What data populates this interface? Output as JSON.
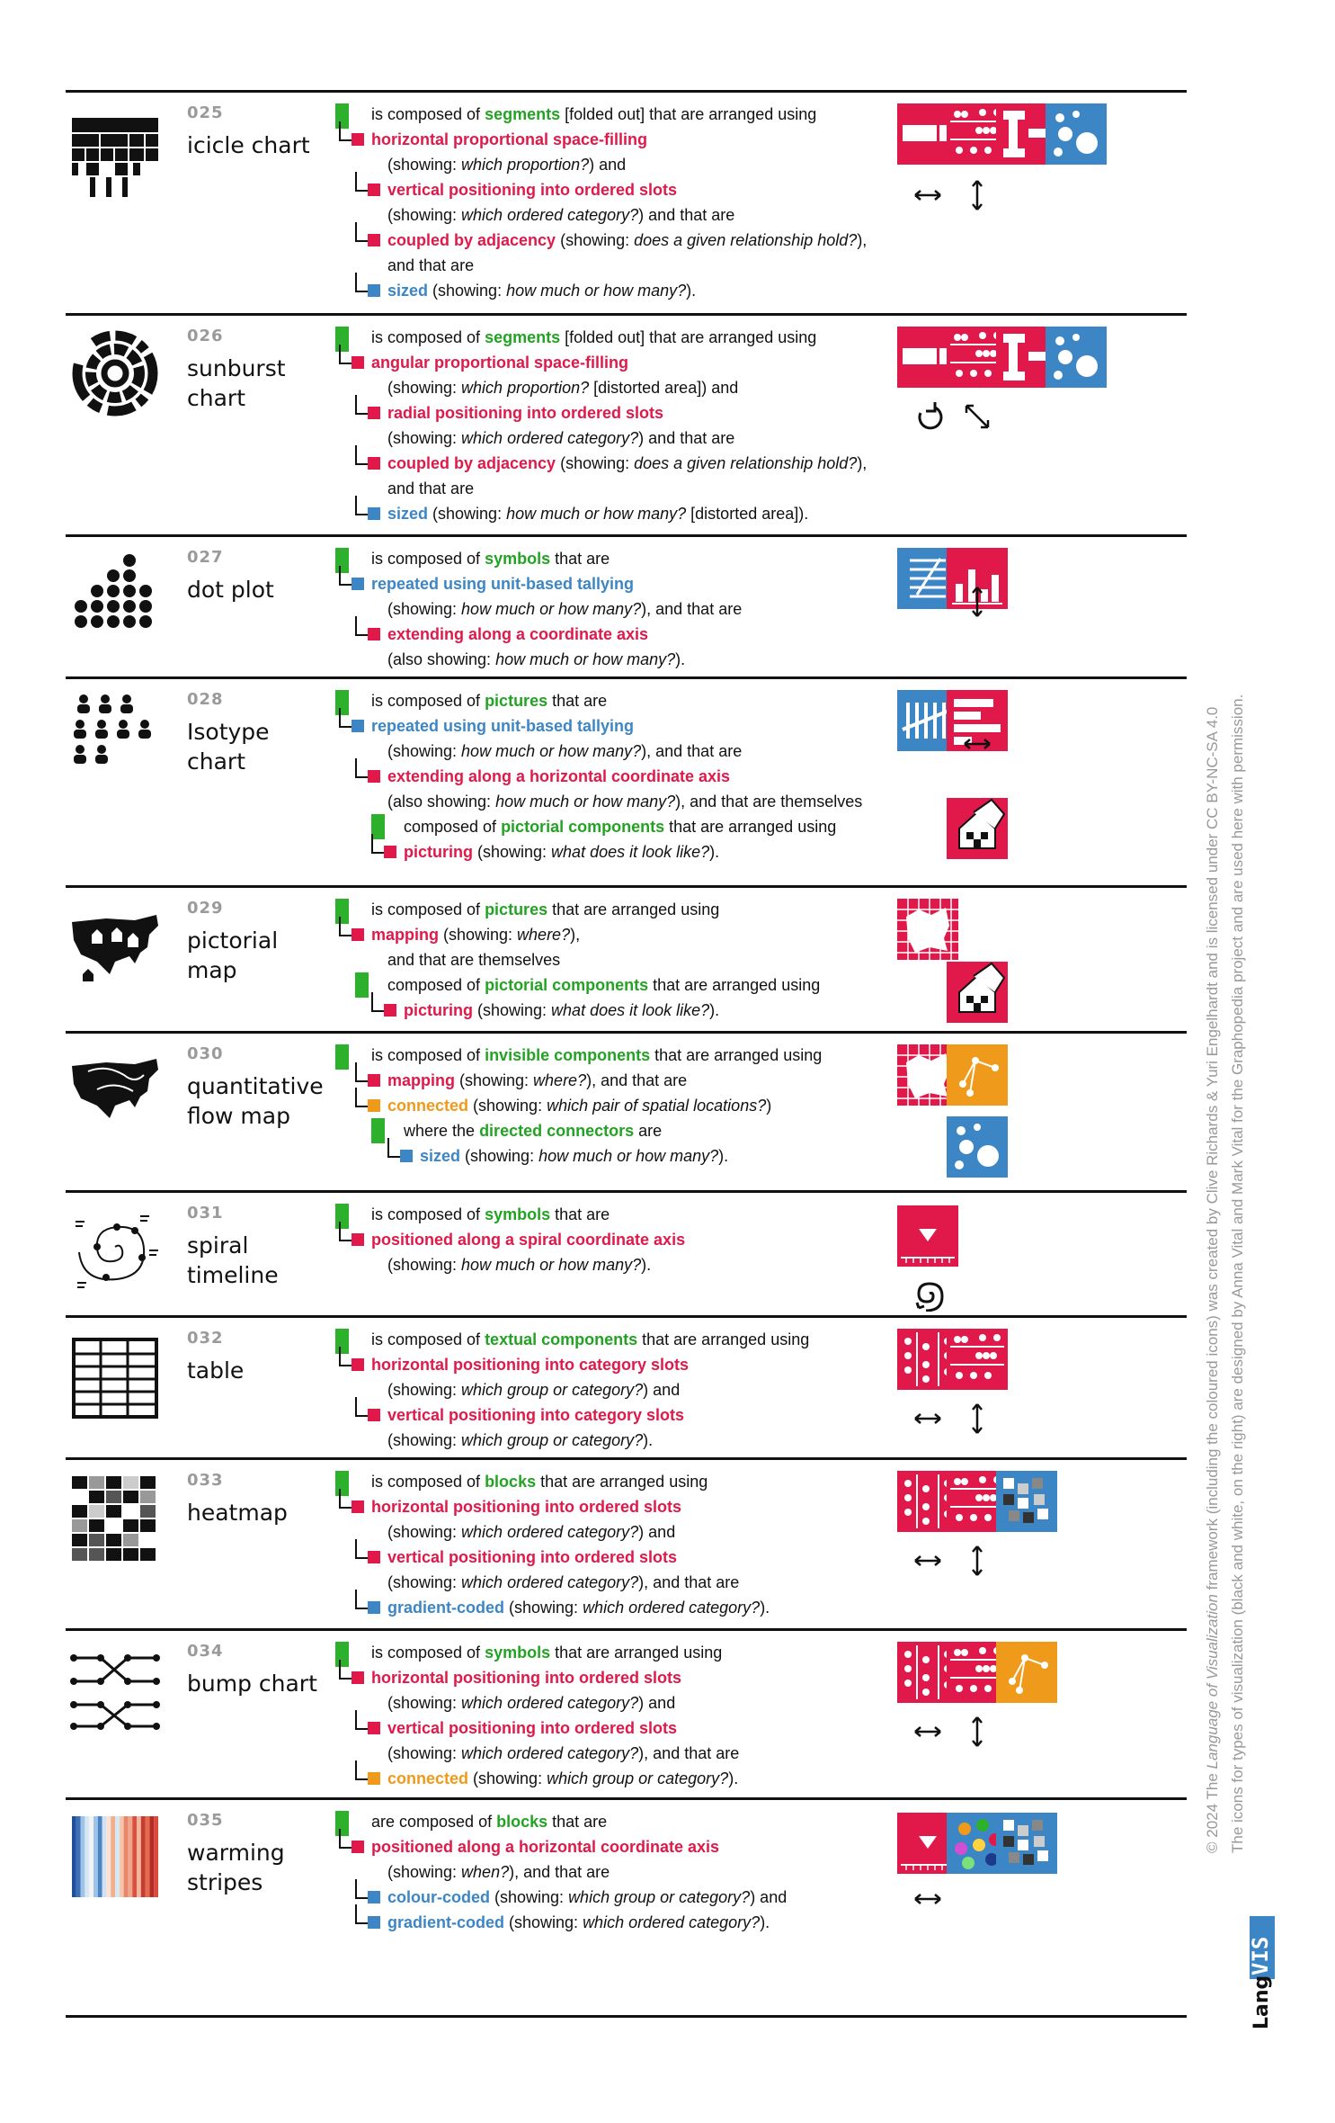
{
  "entries": [
    {
      "num": "025",
      "name": [
        "icicle chart"
      ],
      "lines": [
        [
          "is composed of ",
          {
            "t": "segments",
            "c": "g"
          },
          " [folded out] that are arranged using"
        ],
        [
          {
            "t": "horizontal proportional space-filling",
            "c": "r"
          }
        ],
        [
          "(showing: ",
          {
            "t": "which proportion?",
            "c": "i"
          },
          ") and"
        ],
        [
          {
            "t": "vertical positioning into ordered slots",
            "c": "r"
          }
        ],
        [
          "(showing: ",
          {
            "t": "which ordered category?",
            "c": "i"
          },
          ") and that are"
        ],
        [
          {
            "t": "coupled by adjacency",
            "c": "r"
          },
          " (showing: ",
          {
            "t": "does a given relationship hold?",
            "c": "i"
          },
          "),"
        ],
        [
          "and that are"
        ],
        [
          {
            "t": "sized",
            "c": "b"
          },
          " (showing: ",
          {
            "t": "how much or how many?",
            "c": "i"
          },
          ")."
        ]
      ]
    },
    {
      "num": "026",
      "name": [
        "sunburst",
        "chart"
      ],
      "lines": [
        [
          "is composed of ",
          {
            "t": "segments",
            "c": "g"
          },
          " [folded out] that are arranged using"
        ],
        [
          {
            "t": "angular proportional space-filling",
            "c": "r"
          }
        ],
        [
          "(showing: ",
          {
            "t": "which proportion?",
            "c": "i"
          },
          " [distorted area]) and"
        ],
        [
          {
            "t": "radial positioning into ordered slots",
            "c": "r"
          }
        ],
        [
          "(showing: ",
          {
            "t": "which ordered category?",
            "c": "i"
          },
          ") and that are"
        ],
        [
          {
            "t": "coupled by adjacency",
            "c": "r"
          },
          " (showing: ",
          {
            "t": "does a given relationship hold?",
            "c": "i"
          },
          "),"
        ],
        [
          "and that are"
        ],
        [
          {
            "t": "sized",
            "c": "b"
          },
          " (showing: ",
          {
            "t": "how much or how many?",
            "c": "i"
          },
          " [distorted area])."
        ]
      ]
    },
    {
      "num": "027",
      "name": [
        "dot plot"
      ],
      "lines": [
        [
          "is composed of ",
          {
            "t": "symbols",
            "c": "g"
          },
          " that are"
        ],
        [
          {
            "t": "repeated using unit-based tallying",
            "c": "b"
          }
        ],
        [
          "(showing: ",
          {
            "t": "how much or how many?",
            "c": "i"
          },
          "), and that are"
        ],
        [
          {
            "t": "extending along a coordinate axis",
            "c": "r"
          }
        ],
        [
          "(also showing: ",
          {
            "t": "how much or how many?",
            "c": "i"
          },
          ")."
        ]
      ]
    },
    {
      "num": "028",
      "name": [
        "Isotype chart"
      ],
      "lines": [
        [
          "is composed of ",
          {
            "t": "pictures",
            "c": "g"
          },
          " that are"
        ],
        [
          {
            "t": "repeated using unit-based tallying",
            "c": "b"
          }
        ],
        [
          "(showing: ",
          {
            "t": "how much or how many?",
            "c": "i"
          },
          "), and that are"
        ],
        [
          {
            "t": "extending along a horizontal coordinate axis",
            "c": "r"
          }
        ],
        [
          "(also showing: ",
          {
            "t": "how much or how many?",
            "c": "i"
          },
          "), and that are themselves"
        ],
        [
          "composed of ",
          {
            "t": "pictorial components",
            "c": "g"
          },
          " that are arranged using"
        ],
        [
          {
            "t": "picturing",
            "c": "r"
          },
          " (showing: ",
          {
            "t": "what does it look like?",
            "c": "i"
          },
          ")."
        ]
      ]
    },
    {
      "num": "029",
      "name": [
        "pictorial map"
      ],
      "lines": [
        [
          "is composed of ",
          {
            "t": "pictures",
            "c": "g"
          },
          " that are arranged using"
        ],
        [
          {
            "t": "mapping",
            "c": "r"
          },
          " (showing: ",
          {
            "t": "where?",
            "c": "i"
          },
          "),"
        ],
        [
          "and that are themselves"
        ],
        [
          "composed of ",
          {
            "t": "pictorial components",
            "c": "g"
          },
          " that are arranged using"
        ],
        [
          {
            "t": "picturing",
            "c": "r"
          },
          " (showing: ",
          {
            "t": "what does it look like?",
            "c": "i"
          },
          ")."
        ]
      ]
    },
    {
      "num": "030",
      "name": [
        "quantitative",
        "flow map"
      ],
      "lines": [
        [
          "is composed of ",
          {
            "t": "invisible components",
            "c": "g"
          },
          " that are arranged using"
        ],
        [
          {
            "t": "mapping",
            "c": "r"
          },
          " (showing: ",
          {
            "t": "where?",
            "c": "i"
          },
          "), and that are"
        ],
        [
          {
            "t": "connected",
            "c": "o"
          },
          " (showing: ",
          {
            "t": "which pair of spatial locations?",
            "c": "i"
          },
          ")"
        ],
        [
          "where the ",
          {
            "t": "directed connectors",
            "c": "g"
          },
          " are"
        ],
        [
          {
            "t": "sized",
            "c": "b"
          },
          " (showing: ",
          {
            "t": "how much or how many?",
            "c": "i"
          },
          ")."
        ]
      ]
    },
    {
      "num": "031",
      "name": [
        "spiral",
        "timeline"
      ],
      "lines": [
        [
          "is composed of ",
          {
            "t": "symbols",
            "c": "g"
          },
          " that are"
        ],
        [
          {
            "t": "positioned along a spiral coordinate axis",
            "c": "r"
          }
        ],
        [
          "(showing: ",
          {
            "t": "how much or how many?",
            "c": "i"
          },
          ")."
        ]
      ]
    },
    {
      "num": "032",
      "name": [
        "table"
      ],
      "lines": [
        [
          "is composed of ",
          {
            "t": "textual components",
            "c": "g"
          },
          " that are arranged using"
        ],
        [
          {
            "t": "horizontal positioning into category slots",
            "c": "r"
          }
        ],
        [
          "(showing: ",
          {
            "t": "which group or category?",
            "c": "i"
          },
          ") and"
        ],
        [
          {
            "t": "vertical positioning into category slots",
            "c": "r"
          }
        ],
        [
          "(showing: ",
          {
            "t": "which group or category?",
            "c": "i"
          },
          ")."
        ]
      ]
    },
    {
      "num": "033",
      "name": [
        "heatmap"
      ],
      "lines": [
        [
          "is composed of ",
          {
            "t": "blocks",
            "c": "g"
          },
          " that are arranged using"
        ],
        [
          {
            "t": "horizontal positioning into ordered slots",
            "c": "r"
          }
        ],
        [
          "(showing: ",
          {
            "t": "which ordered category?",
            "c": "i"
          },
          ") and"
        ],
        [
          {
            "t": "vertical positioning into ordered slots",
            "c": "r"
          }
        ],
        [
          "(showing: ",
          {
            "t": "which ordered category?",
            "c": "i"
          },
          "), and that are"
        ],
        [
          {
            "t": "gradient-coded",
            "c": "b"
          },
          " (showing: ",
          {
            "t": "which ordered category?",
            "c": "i"
          },
          ")."
        ]
      ]
    },
    {
      "num": "034",
      "name": [
        "bump chart"
      ],
      "lines": [
        [
          "is composed of ",
          {
            "t": "symbols",
            "c": "g"
          },
          " that are arranged using"
        ],
        [
          {
            "t": "horizontal positioning into ordered slots",
            "c": "r"
          }
        ],
        [
          "(showing: ",
          {
            "t": "which ordered category?",
            "c": "i"
          },
          ") and"
        ],
        [
          {
            "t": "vertical positioning into ordered slots",
            "c": "r"
          }
        ],
        [
          "(showing: ",
          {
            "t": "which ordered category?",
            "c": "i"
          },
          "), and that are"
        ],
        [
          {
            "t": "connected",
            "c": "o"
          },
          " (showing: ",
          {
            "t": "which group or category?",
            "c": "i"
          },
          ")."
        ]
      ]
    },
    {
      "num": "035",
      "name": [
        "warming",
        "stripes"
      ],
      "lines": [
        [
          "are composed of ",
          {
            "t": "blocks",
            "c": "g"
          },
          " that are"
        ],
        [
          {
            "t": "positioned along a horizontal coordinate axis",
            "c": "r"
          }
        ],
        [
          "(showing: ",
          {
            "t": "when?",
            "c": "i"
          },
          "), and that are"
        ],
        [
          {
            "t": "colour-coded",
            "c": "b"
          },
          " (showing: ",
          {
            "t": "which group or category?",
            "c": "i"
          },
          ") and"
        ],
        [
          {
            "t": "gradient-coded",
            "c": "b"
          },
          " (showing: ",
          {
            "t": "which ordered category?",
            "c": "i"
          },
          ")."
        ]
      ]
    }
  ],
  "side_note": {
    "line1_a": "© 2024  The ",
    "line1_em": "Language of Visualization",
    "line1_b": " framework (including the coloured icons) was created by Clive Richards & Yuri Engelhardt and is licensed under CC BY-NC-SA 4.0",
    "line2": "The icons for types of visualization (black and white, on the right) are designed by Anna Vital and Mark Vital for the Graphopedia project and are used here with permission."
  },
  "logo": {
    "lang": "Lang",
    "vis": "VIS"
  },
  "colors": {
    "green": "#2db12d",
    "red": "#e0194a",
    "blue": "#3c86c6",
    "orange": "#ef9a1b"
  }
}
